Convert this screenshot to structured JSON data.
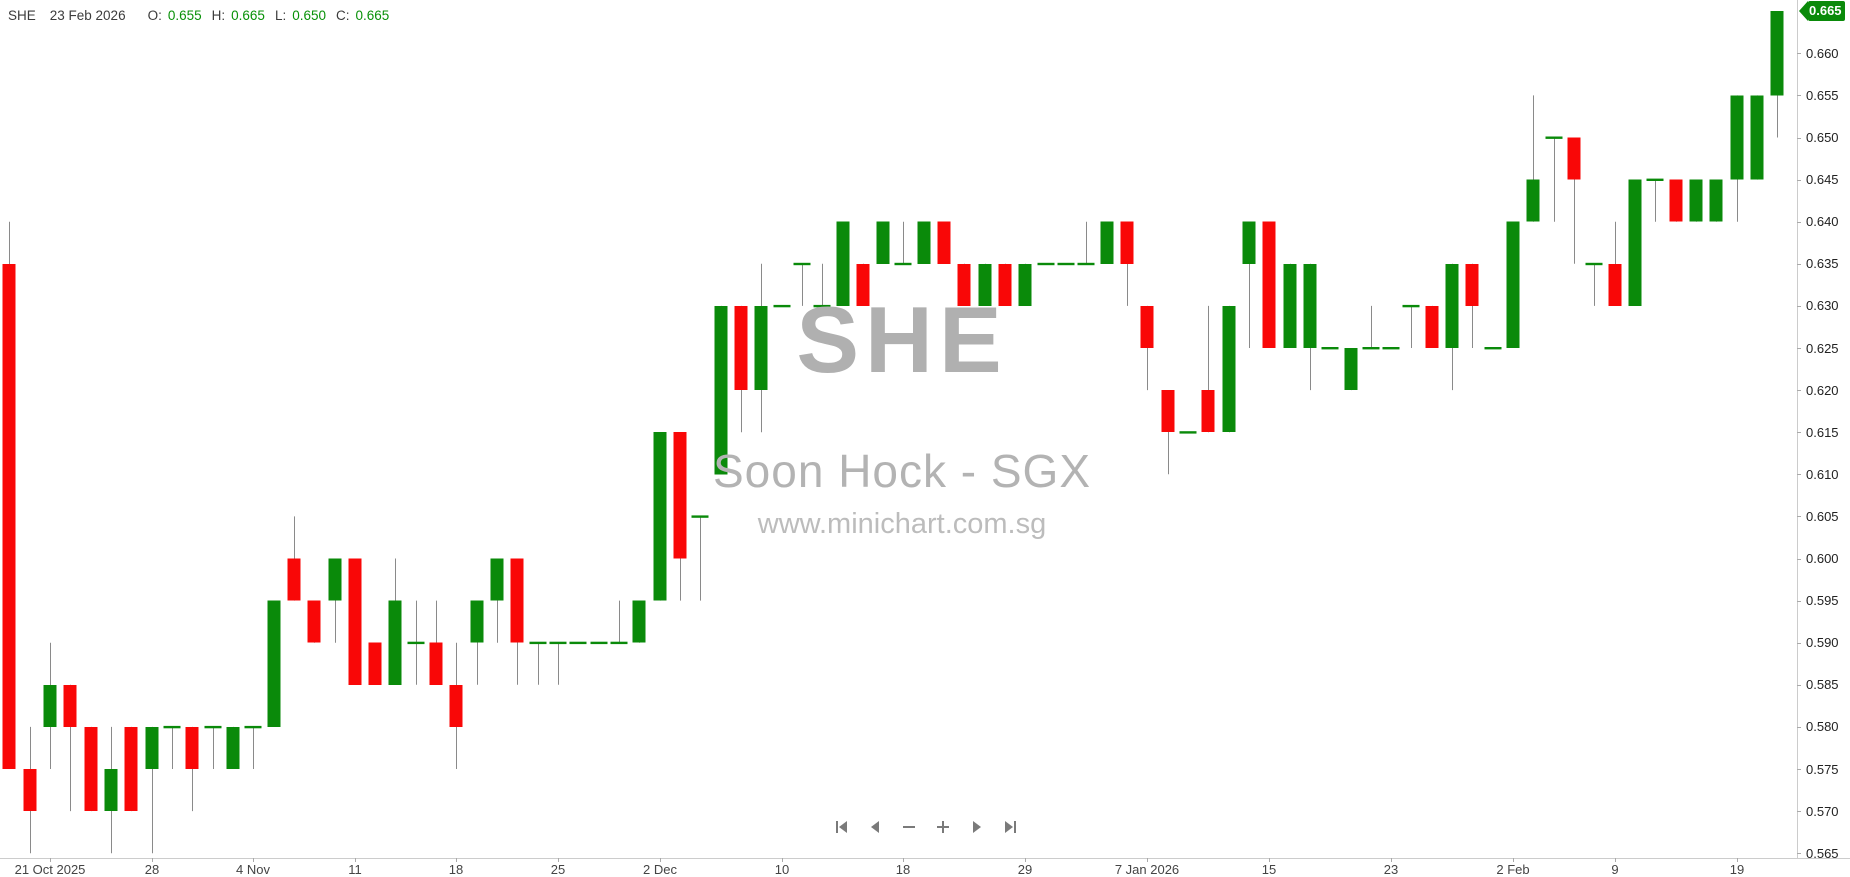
{
  "header": {
    "symbol": "SHE",
    "date": "23 Feb 2026",
    "open_label": "O:",
    "open": "0.655",
    "high_label": "H:",
    "high": "0.665",
    "low_label": "L:",
    "low": "0.650",
    "close_label": "C:",
    "close": "0.665"
  },
  "watermark": {
    "title": "SHE",
    "subtitle": "Soon Hock - SGX",
    "url": "www.minichart.com.sg"
  },
  "price_badge": "0.665",
  "colors": {
    "up": "#0a8a0a",
    "down": "#f90707",
    "doji": "#0a8a0a",
    "wick": "#8a8a8a",
    "badge_bg": "#0a8a0a",
    "header_value": "#089108",
    "watermark_gray": "#b3b3b3"
  },
  "nav": {
    "buttons": [
      {
        "name": "skip-start"
      },
      {
        "name": "step-back"
      },
      {
        "name": "zoom-out"
      },
      {
        "name": "zoom-in"
      },
      {
        "name": "step-forward"
      },
      {
        "name": "skip-end"
      }
    ]
  },
  "chart_data": {
    "type": "candlestick",
    "title": "SHE - Soon Hock - SGX",
    "ylim": [
      0.565,
      0.665
    ],
    "y_tick_step": 0.005,
    "y_axis_labels": [
      "0.660",
      "0.655",
      "0.650",
      "0.645",
      "0.640",
      "0.635",
      "0.630",
      "0.625",
      "0.620",
      "0.615",
      "0.610",
      "0.605",
      "0.600",
      "0.595",
      "0.590",
      "0.585",
      "0.580",
      "0.575",
      "0.570",
      "0.565"
    ],
    "x_ticks": [
      {
        "index": 2,
        "label": "21 Oct 2025"
      },
      {
        "index": 7,
        "label": "28"
      },
      {
        "index": 12,
        "label": "4 Nov"
      },
      {
        "index": 17,
        "label": "11"
      },
      {
        "index": 22,
        "label": "18"
      },
      {
        "index": 27,
        "label": "25"
      },
      {
        "index": 32,
        "label": "2 Dec"
      },
      {
        "index": 38,
        "label": "10"
      },
      {
        "index": 44,
        "label": "18"
      },
      {
        "index": 50,
        "label": "29"
      },
      {
        "index": 56,
        "label": "7 Jan 2026"
      },
      {
        "index": 62,
        "label": "15"
      },
      {
        "index": 68,
        "label": "23"
      },
      {
        "index": 74,
        "label": "2 Feb"
      },
      {
        "index": 79,
        "label": "9"
      },
      {
        "index": 85,
        "label": "19"
      }
    ],
    "ohlc_format": [
      "open",
      "high",
      "low",
      "close"
    ],
    "candles": [
      [
        0.635,
        0.64,
        0.575,
        0.575
      ],
      [
        0.575,
        0.58,
        0.565,
        0.57
      ],
      [
        0.58,
        0.59,
        0.575,
        0.585
      ],
      [
        0.585,
        0.585,
        0.57,
        0.58
      ],
      [
        0.58,
        0.58,
        0.57,
        0.57
      ],
      [
        0.57,
        0.58,
        0.565,
        0.575
      ],
      [
        0.58,
        0.58,
        0.57,
        0.57
      ],
      [
        0.575,
        0.58,
        0.565,
        0.58
      ],
      [
        0.58,
        0.58,
        0.575,
        0.58
      ],
      [
        0.58,
        0.58,
        0.57,
        0.575
      ],
      [
        0.58,
        0.58,
        0.575,
        0.58
      ],
      [
        0.575,
        0.58,
        0.575,
        0.58
      ],
      [
        0.58,
        0.58,
        0.575,
        0.58
      ],
      [
        0.58,
        0.595,
        0.58,
        0.595
      ],
      [
        0.6,
        0.605,
        0.595,
        0.595
      ],
      [
        0.595,
        0.595,
        0.59,
        0.59
      ],
      [
        0.595,
        0.6,
        0.59,
        0.6
      ],
      [
        0.6,
        0.6,
        0.585,
        0.585
      ],
      [
        0.59,
        0.59,
        0.585,
        0.585
      ],
      [
        0.585,
        0.6,
        0.585,
        0.595
      ],
      [
        0.59,
        0.595,
        0.585,
        0.59
      ],
      [
        0.59,
        0.595,
        0.585,
        0.585
      ],
      [
        0.585,
        0.59,
        0.575,
        0.58
      ],
      [
        0.59,
        0.595,
        0.585,
        0.595
      ],
      [
        0.595,
        0.6,
        0.59,
        0.6
      ],
      [
        0.6,
        0.6,
        0.585,
        0.59
      ],
      [
        0.59,
        0.59,
        0.585,
        0.59
      ],
      [
        0.59,
        0.59,
        0.585,
        0.59
      ],
      [
        0.59,
        0.59,
        0.59,
        0.59
      ],
      [
        0.59,
        0.59,
        0.59,
        0.59
      ],
      [
        0.59,
        0.595,
        0.59,
        0.59
      ],
      [
        0.59,
        0.595,
        0.59,
        0.595
      ],
      [
        0.595,
        0.615,
        0.595,
        0.615
      ],
      [
        0.615,
        0.615,
        0.595,
        0.6
      ],
      [
        0.605,
        0.605,
        0.595,
        0.605
      ],
      [
        0.61,
        0.63,
        0.61,
        0.63
      ],
      [
        0.63,
        0.63,
        0.615,
        0.62
      ],
      [
        0.62,
        0.635,
        0.615,
        0.63
      ],
      [
        0.63,
        0.63,
        0.63,
        0.63
      ],
      [
        0.635,
        0.635,
        0.63,
        0.635
      ],
      [
        0.63,
        0.635,
        0.63,
        0.63
      ],
      [
        0.63,
        0.64,
        0.63,
        0.64
      ],
      [
        0.635,
        0.635,
        0.63,
        0.63
      ],
      [
        0.635,
        0.64,
        0.635,
        0.64
      ],
      [
        0.635,
        0.64,
        0.635,
        0.635
      ],
      [
        0.635,
        0.64,
        0.635,
        0.64
      ],
      [
        0.64,
        0.64,
        0.635,
        0.635
      ],
      [
        0.635,
        0.635,
        0.63,
        0.63
      ],
      [
        0.63,
        0.635,
        0.63,
        0.635
      ],
      [
        0.635,
        0.635,
        0.63,
        0.63
      ],
      [
        0.63,
        0.635,
        0.63,
        0.635
      ],
      [
        0.635,
        0.635,
        0.635,
        0.635
      ],
      [
        0.635,
        0.635,
        0.635,
        0.635
      ],
      [
        0.635,
        0.64,
        0.635,
        0.635
      ],
      [
        0.635,
        0.64,
        0.635,
        0.64
      ],
      [
        0.64,
        0.64,
        0.63,
        0.635
      ],
      [
        0.63,
        0.63,
        0.62,
        0.625
      ],
      [
        0.62,
        0.62,
        0.61,
        0.615
      ],
      [
        0.615,
        0.615,
        0.615,
        0.615
      ],
      [
        0.62,
        0.63,
        0.615,
        0.615
      ],
      [
        0.615,
        0.63,
        0.615,
        0.63
      ],
      [
        0.635,
        0.64,
        0.625,
        0.64
      ],
      [
        0.64,
        0.64,
        0.625,
        0.625
      ],
      [
        0.625,
        0.635,
        0.625,
        0.635
      ],
      [
        0.625,
        0.635,
        0.62,
        0.635
      ],
      [
        0.625,
        0.625,
        0.625,
        0.625
      ],
      [
        0.62,
        0.625,
        0.62,
        0.625
      ],
      [
        0.625,
        0.63,
        0.625,
        0.625
      ],
      [
        0.625,
        0.625,
        0.625,
        0.625
      ],
      [
        0.63,
        0.63,
        0.625,
        0.63
      ],
      [
        0.63,
        0.63,
        0.625,
        0.625
      ],
      [
        0.625,
        0.635,
        0.62,
        0.635
      ],
      [
        0.635,
        0.635,
        0.625,
        0.63
      ],
      [
        0.625,
        0.625,
        0.625,
        0.625
      ],
      [
        0.625,
        0.64,
        0.625,
        0.64
      ],
      [
        0.64,
        0.655,
        0.64,
        0.645
      ],
      [
        0.65,
        0.65,
        0.64,
        0.65
      ],
      [
        0.65,
        0.65,
        0.635,
        0.645
      ],
      [
        0.635,
        0.635,
        0.63,
        0.635
      ],
      [
        0.635,
        0.64,
        0.63,
        0.63
      ],
      [
        0.63,
        0.645,
        0.63,
        0.645
      ],
      [
        0.645,
        0.645,
        0.64,
        0.645
      ],
      [
        0.645,
        0.645,
        0.64,
        0.64
      ],
      [
        0.64,
        0.645,
        0.64,
        0.645
      ],
      [
        0.64,
        0.645,
        0.64,
        0.645
      ],
      [
        0.645,
        0.655,
        0.64,
        0.655
      ],
      [
        0.645,
        0.655,
        0.645,
        0.655
      ],
      [
        0.655,
        0.665,
        0.65,
        0.665
      ]
    ]
  }
}
